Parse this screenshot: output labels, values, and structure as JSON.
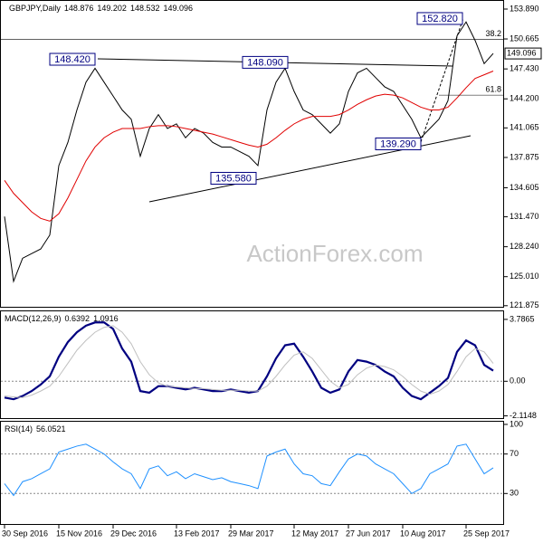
{
  "chart_data": [
    {
      "type": "line",
      "title": "GBPJPY,Daily",
      "ohlc": [
        148.876,
        149.202,
        148.532,
        149.096
      ],
      "series": [
        {
          "color": "#000000",
          "values": [
            131.5,
            124.5,
            127.0,
            127.5,
            128.0,
            129.5,
            137.0,
            139.5,
            143.0,
            146.0,
            147.5,
            146.0,
            144.5,
            143.0,
            142.0,
            138.0,
            141.0,
            142.5,
            141.0,
            141.5,
            140.0,
            141.0,
            140.5,
            139.5,
            139.0,
            139.0,
            138.5,
            138.0,
            137.0,
            143.0,
            146.0,
            147.5,
            145.0,
            143.0,
            142.5,
            141.5,
            140.5,
            141.5,
            145.0,
            147.0,
            147.5,
            146.5,
            145.5,
            145.0,
            143.5,
            142.0,
            140.0,
            141.0,
            142.0,
            144.0,
            151.0,
            152.5,
            150.5,
            148.0,
            149.1
          ]
        },
        {
          "color": "#e00000",
          "values": [
            135.4,
            134,
            133,
            132,
            131.3,
            131.0,
            131.8,
            133.5,
            135.5,
            137.5,
            139,
            140,
            140.6,
            141,
            141,
            141,
            141.2,
            141.3,
            141.3,
            141.2,
            141,
            140.8,
            140.6,
            140.4,
            140.1,
            139.8,
            139.5,
            139.2,
            139,
            139.3,
            140,
            140.8,
            141.5,
            142,
            142.3,
            142.3,
            142.3,
            142.5,
            143,
            143.6,
            144.1,
            144.5,
            144.7,
            144.6,
            144.3,
            143.8,
            143.3,
            143,
            143,
            143.3,
            144.3,
            145.4,
            146.4,
            146.8,
            147.2
          ]
        }
      ],
      "ylim": [
        121.66,
        154.77
      ],
      "yticks": [
        {
          "value": 153.89,
          "label": "153.890"
        },
        150.665,
        {
          "value": 147.43,
          "label": "147.430"
        },
        {
          "value": 144.2,
          "label": "144.200"
        },
        141.065,
        137.875,
        134.605,
        {
          "value": 131.47,
          "label": "131.470"
        },
        {
          "value": 128.24,
          "label": "128.240"
        },
        {
          "value": 125.01,
          "label": "125.010"
        },
        121.875
      ],
      "last": {
        "value": 149.096,
        "label": "149.096"
      },
      "fib_levels": [
        {
          "text": "38.2",
          "price": 150.6
        },
        {
          "text": "61.8",
          "price": 144.6
        }
      ],
      "annotations": [
        {
          "value": 148.42,
          "label": "148.420"
        },
        {
          "value": 148.09,
          "label": "148.090"
        },
        {
          "value": 152.82,
          "label": "152.820"
        },
        {
          "value": 139.29,
          "label": "139.290"
        },
        {
          "value": 135.58,
          "label": "135.580"
        }
      ],
      "watermark": "ActionForex.com"
    },
    {
      "type": "line",
      "title": "MACD(12,26,9)",
      "readings": [
        0.6392,
        1.0916
      ],
      "series": [
        {
          "color": "#000080",
          "values": [
            -1.0,
            -1.1,
            -0.9,
            -0.6,
            -0.2,
            0.3,
            1.5,
            2.4,
            3.0,
            3.4,
            3.6,
            3.6,
            3.2,
            2.0,
            1.2,
            -0.6,
            -0.7,
            -0.3,
            -0.3,
            -0.4,
            -0.5,
            -0.4,
            -0.5,
            -0.6,
            -0.6,
            -0.5,
            -0.6,
            -0.7,
            -0.6,
            0.3,
            1.4,
            2.2,
            2.3,
            1.5,
            0.6,
            -0.4,
            -0.7,
            -0.5,
            0.6,
            1.3,
            1.2,
            1.0,
            0.6,
            0.3,
            -0.4,
            -0.9,
            -1.1,
            -0.7,
            -0.3,
            0.2,
            1.8,
            2.5,
            2.2,
            1.0,
            0.65
          ]
        },
        {
          "color": "#c0c0c0",
          "values": [
            -0.9,
            -0.95,
            -1.0,
            -0.85,
            -0.6,
            -0.3,
            0.3,
            1.1,
            1.9,
            2.5,
            3.0,
            3.3,
            3.4,
            3.0,
            2.3,
            1.2,
            0.4,
            -0.1,
            -0.3,
            -0.35,
            -0.4,
            -0.45,
            -0.45,
            -0.5,
            -0.55,
            -0.55,
            -0.55,
            -0.6,
            -0.6,
            -0.3,
            0.3,
            1.0,
            1.6,
            1.8,
            1.4,
            0.7,
            0.0,
            -0.4,
            -0.2,
            0.4,
            0.8,
            1.0,
            0.9,
            0.7,
            0.3,
            -0.2,
            -0.6,
            -0.8,
            -0.6,
            -0.2,
            0.6,
            1.5,
            2.0,
            1.8,
            1.09
          ]
        }
      ],
      "ylim": [
        -2.31,
        4.28
      ],
      "yticks": [
        3.7865,
        {
          "value": 0,
          "label": "0.00"
        },
        -2.1148
      ]
    },
    {
      "type": "line",
      "title": "RSI(14)",
      "readings": [
        56.0521
      ],
      "series": [
        {
          "color": "#1e90ff",
          "values": [
            40,
            28,
            42,
            45,
            50,
            55,
            72,
            75,
            78,
            80,
            75,
            70,
            62,
            55,
            50,
            35,
            55,
            58,
            48,
            52,
            45,
            50,
            47,
            44,
            46,
            42,
            40,
            38,
            35,
            68,
            72,
            75,
            60,
            50,
            48,
            40,
            38,
            52,
            65,
            70,
            68,
            60,
            55,
            50,
            40,
            30,
            35,
            50,
            55,
            60,
            78,
            80,
            65,
            50,
            56
          ]
        }
      ],
      "ylim": [
        -1.8,
        102.7
      ],
      "yticks": [
        100,
        70,
        30
      ],
      "categories": [
        "30 Sep 2016",
        null,
        null,
        null,
        null,
        null,
        "15 Nov 2016",
        null,
        null,
        null,
        null,
        null,
        "29 Dec 2016",
        null,
        null,
        null,
        null,
        null,
        null,
        "13 Feb 2017",
        null,
        null,
        null,
        null,
        null,
        "29 Mar 2017",
        null,
        null,
        null,
        null,
        null,
        null,
        "12 May 2017",
        null,
        null,
        null,
        null,
        null,
        "27 Jun 2017",
        null,
        null,
        null,
        null,
        null,
        "10 Aug 2017",
        null,
        null,
        null,
        null,
        null,
        null,
        "25 Sep 2017",
        null,
        null,
        null
      ]
    }
  ]
}
